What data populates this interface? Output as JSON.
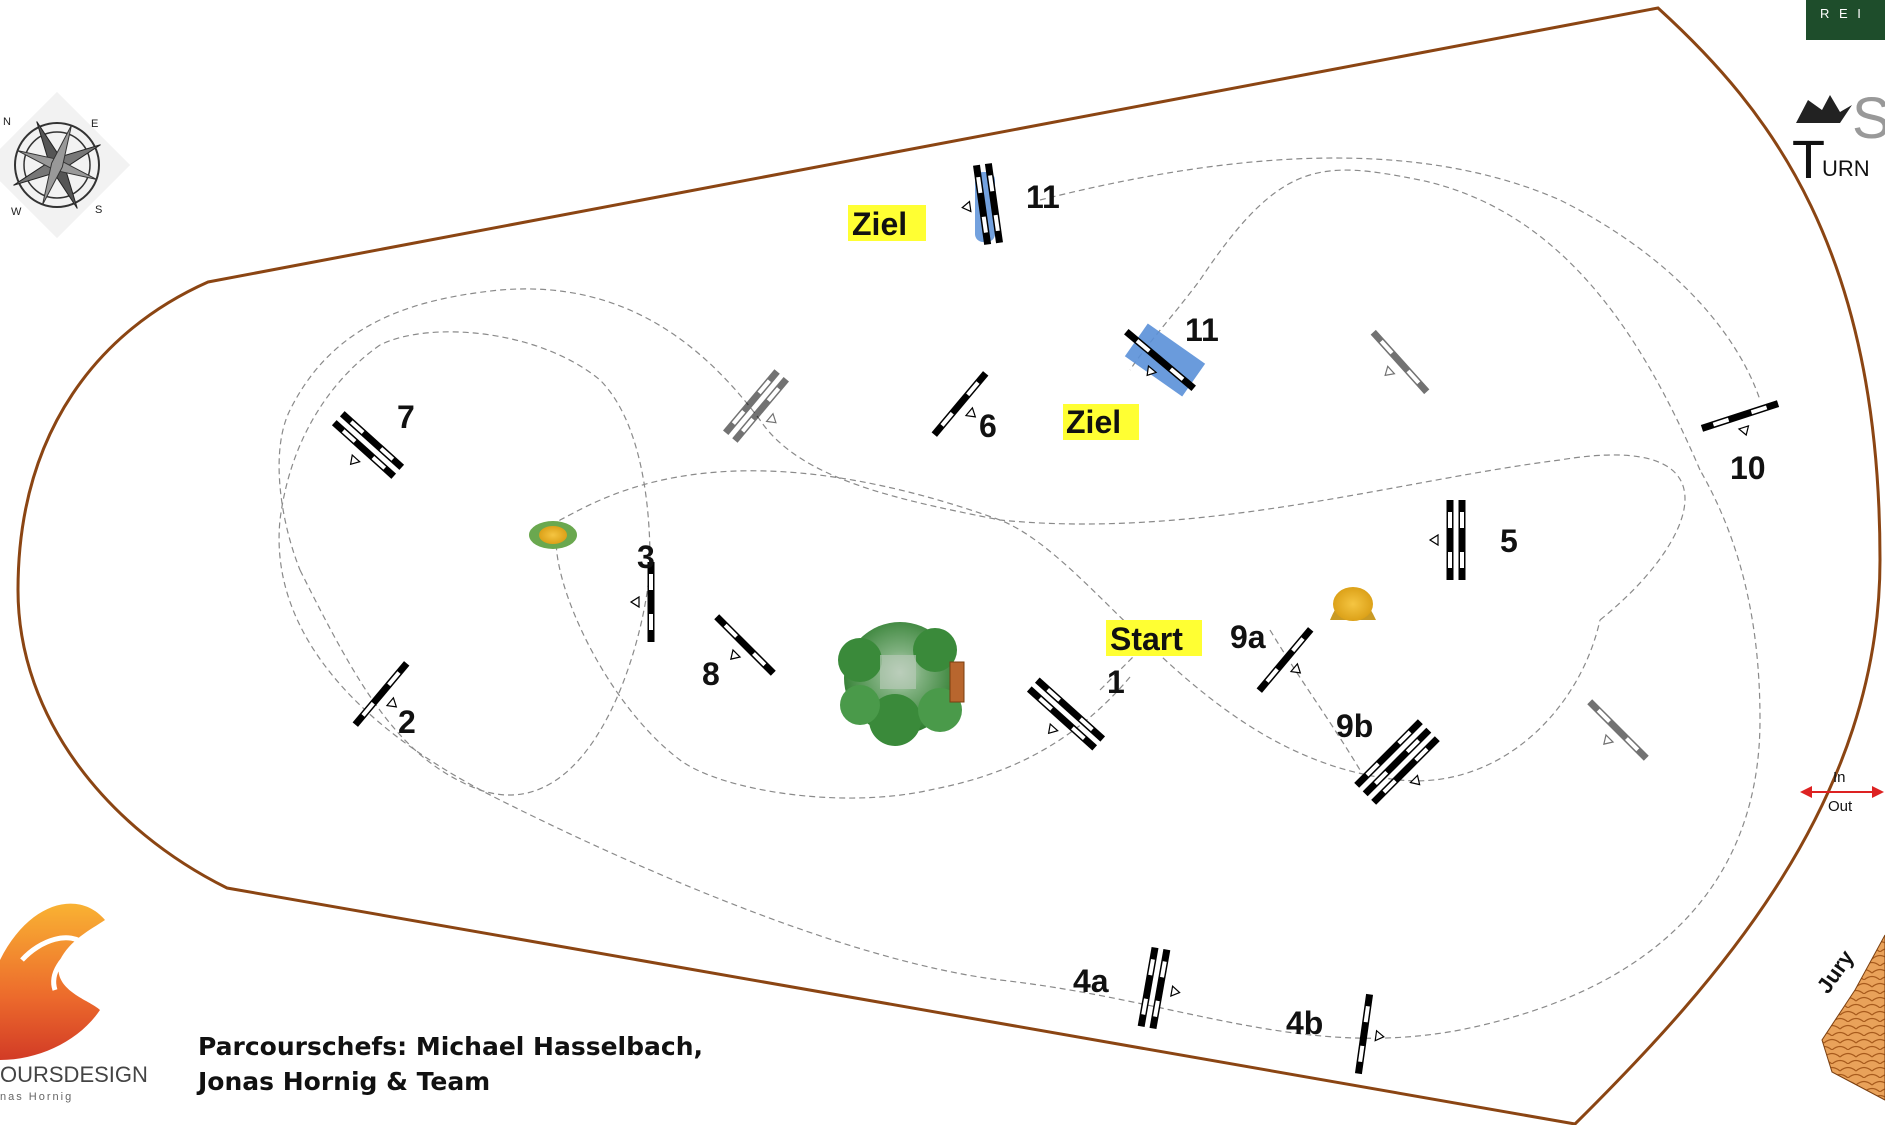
{
  "course": {
    "arena_border_color": "#8B4513",
    "path_color": "#8a8a8a",
    "fence_color": "#000000",
    "water_color": "#4a7fd0",
    "label_highlight_color": "#ffff33"
  },
  "labels": {
    "start": "Start",
    "finish_top": "Ziel",
    "finish_mid": "Ziel",
    "in": "In",
    "out": "Out",
    "jury": "Jury"
  },
  "jumps": [
    {
      "id": "1",
      "label": "1"
    },
    {
      "id": "2",
      "label": "2"
    },
    {
      "id": "3",
      "label": "3"
    },
    {
      "id": "4a",
      "label": "4a"
    },
    {
      "id": "4b",
      "label": "4b"
    },
    {
      "id": "5",
      "label": "5"
    },
    {
      "id": "6",
      "label": "6"
    },
    {
      "id": "7",
      "label": "7"
    },
    {
      "id": "8",
      "label": "8"
    },
    {
      "id": "9a",
      "label": "9a"
    },
    {
      "id": "9b",
      "label": "9b"
    },
    {
      "id": "10",
      "label": "10"
    },
    {
      "id": "11-top",
      "label": "11"
    },
    {
      "id": "11-mid",
      "label": "11"
    }
  ],
  "compass": {
    "n": "N",
    "e": "E",
    "s": "S",
    "w": "W"
  },
  "logos": {
    "top_right_banner": "R E I",
    "turnier_letters": "S",
    "turnier_sub": "URN",
    "turnier_big": "T",
    "parcours_design": "OURSDESIGN",
    "parcours_sub": "nas Hornig"
  },
  "credits": {
    "line1": "Parcourschefs: Michael Hasselbach,",
    "line2": "Jonas Hornig & Team"
  }
}
